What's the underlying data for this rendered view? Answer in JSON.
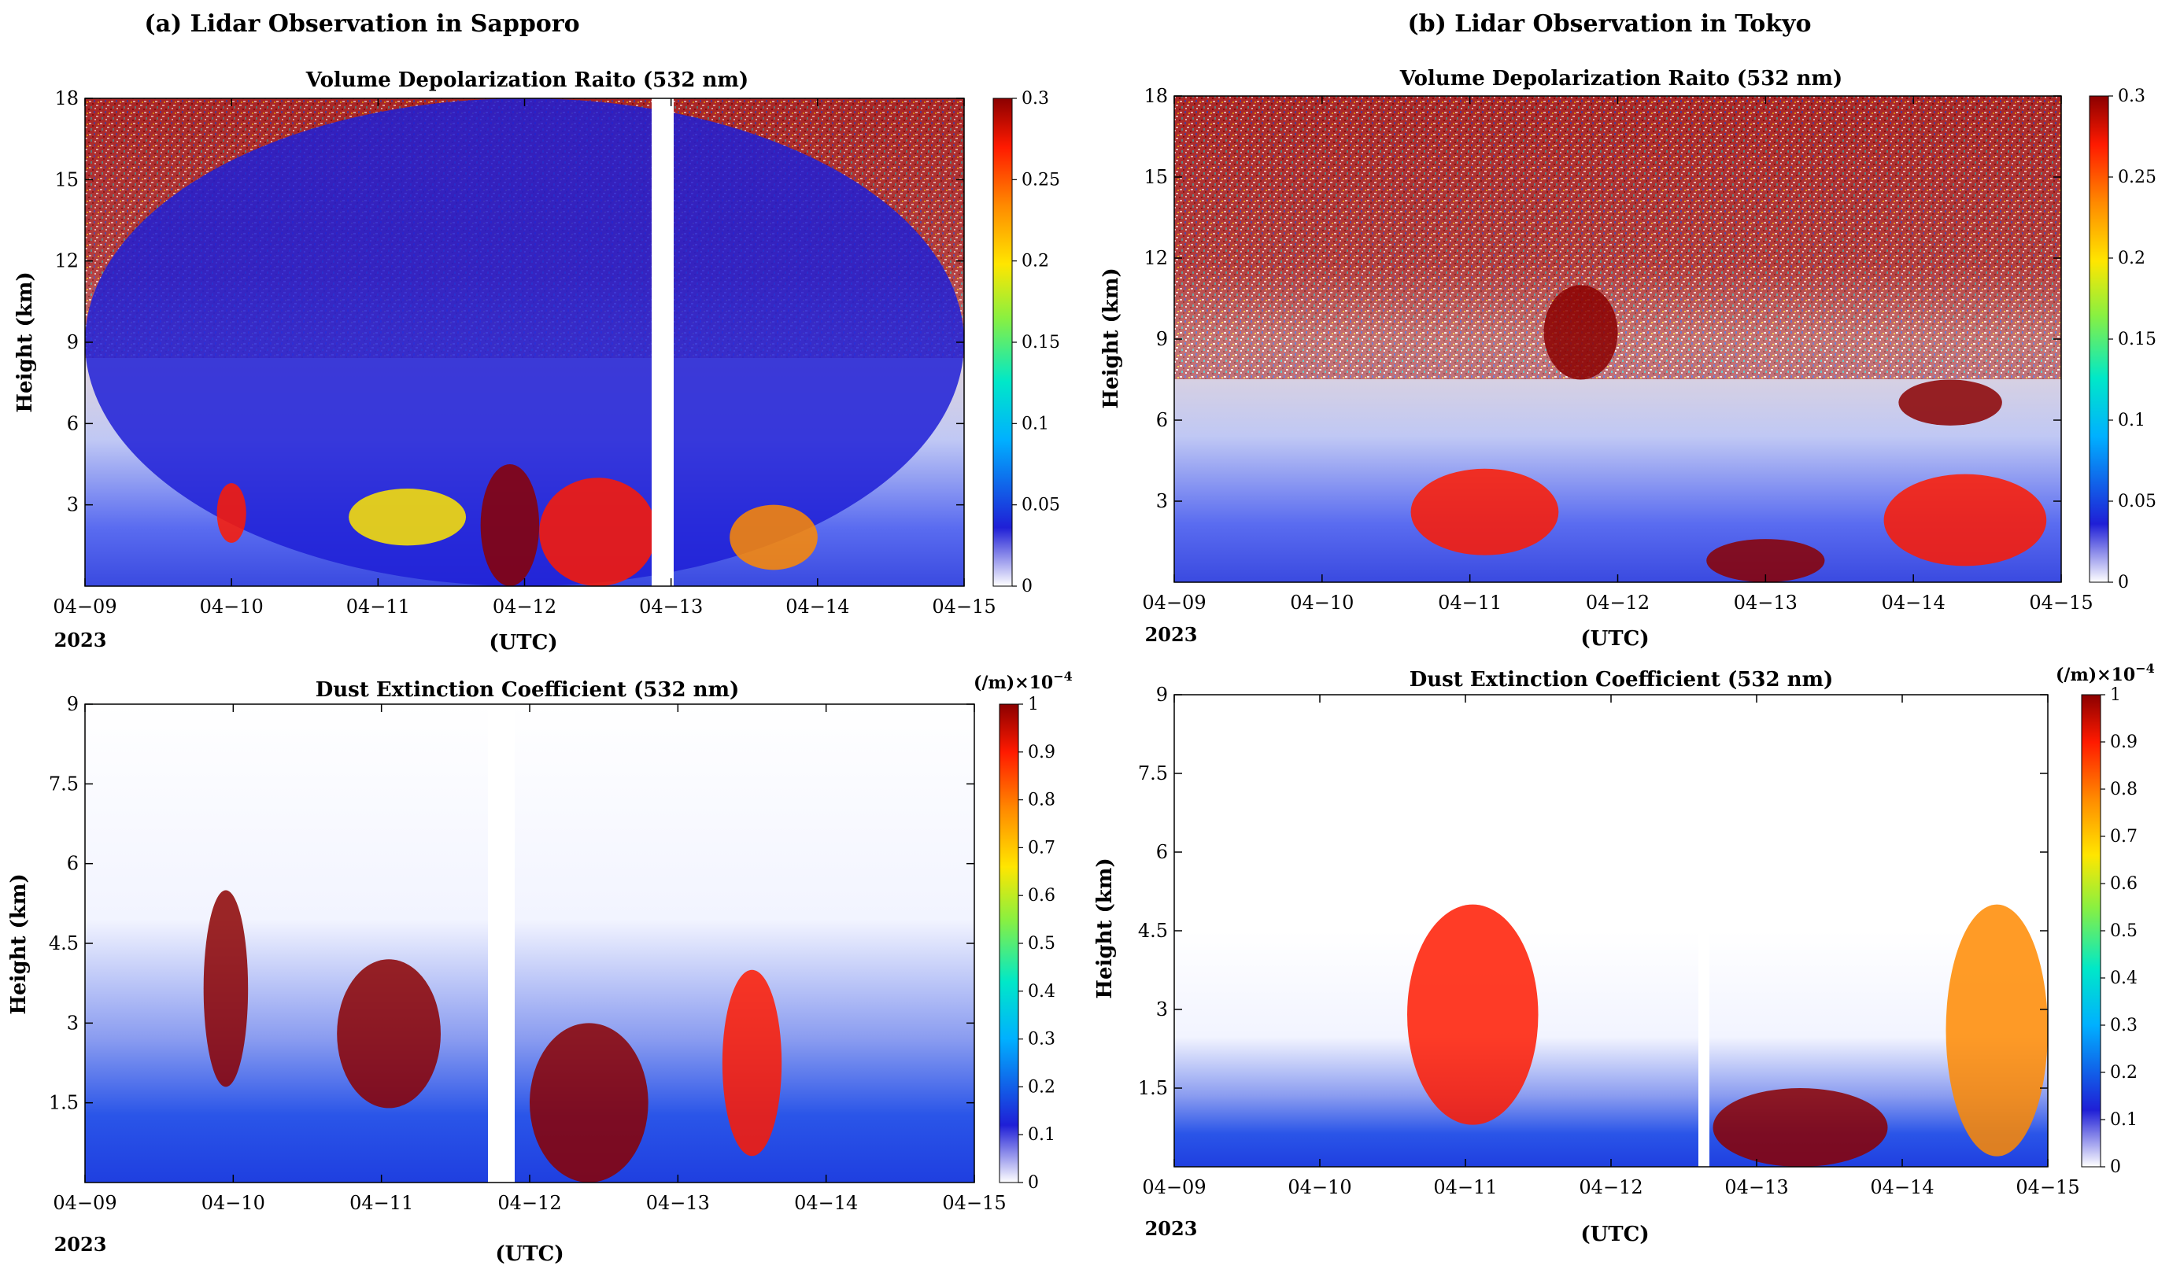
{
  "colors": {
    "colormap_jet": [
      "#ffffff",
      "#1f1fd6",
      "#00b0ff",
      "#00e8c8",
      "#8af040",
      "#ffe600",
      "#ff8a00",
      "#ff1a00",
      "#8b0000"
    ],
    "depol_noise": "#8b0000",
    "ext_blue": "#1f3fe0"
  },
  "panel_headings": {
    "a": "(a) Lidar Observation in Sapporo",
    "b": "(b) Lidar Observation in Tokyo"
  },
  "chart_data": [
    {
      "id": "a-depol",
      "type": "heatmap",
      "title": "Volume Depolarization Raito (532 nm)",
      "ylabel": "Height (km)",
      "xlabel": "(UTC)",
      "x_ticks": [
        "04−09",
        "04−10",
        "04−11",
        "04−12",
        "04−13",
        "04−14",
        "04−15"
      ],
      "x_year": "2023",
      "y_ticks": [
        3,
        6,
        9,
        12,
        15,
        18
      ],
      "ylim": [
        0,
        18
      ],
      "colorbar": {
        "label": "",
        "ticks": [
          0,
          0.05,
          0.1,
          0.15,
          0.2,
          0.25,
          0.3
        ],
        "range": [
          0,
          0.3
        ]
      },
      "features": [
        {
          "start_day": 0.0,
          "end_day": 6.0,
          "top_km": 18,
          "base_km": 0,
          "level": 0.02
        },
        {
          "start_day": 0.9,
          "end_day": 1.1,
          "top_km": 3.8,
          "base_km": 1.6,
          "level": 0.26
        },
        {
          "start_day": 1.8,
          "end_day": 2.6,
          "top_km": 3.6,
          "base_km": 1.5,
          "level": 0.2
        },
        {
          "start_day": 2.7,
          "end_day": 3.1,
          "top_km": 4.5,
          "base_km": 0,
          "level": 0.3
        },
        {
          "start_day": 3.1,
          "end_day": 3.9,
          "top_km": 4.0,
          "base_km": 0,
          "level": 0.27
        },
        {
          "start_day": 4.4,
          "end_day": 5.0,
          "top_km": 3.0,
          "base_km": 0.6,
          "level": 0.24
        }
      ]
    },
    {
      "id": "a-ext",
      "type": "heatmap",
      "title": "Dust Extinction Coefficient  (532 nm)",
      "ylabel": "Height (km)",
      "xlabel": "(UTC)",
      "x_ticks": [
        "04−09",
        "04−10",
        "04−11",
        "04−12",
        "04−13",
        "04−14",
        "04−15"
      ],
      "x_year": "2023",
      "y_ticks": [
        1.5,
        3,
        4.5,
        6,
        7.5,
        9
      ],
      "ylim": [
        0,
        9
      ],
      "colorbar": {
        "label": "(/m)×10",
        "label_exp": "−4",
        "ticks": [
          0,
          0.1,
          0.2,
          0.3,
          0.4,
          0.5,
          0.6,
          0.7,
          0.8,
          0.9,
          1
        ],
        "range": [
          0,
          1
        ]
      },
      "features": [
        {
          "start_day": 0.8,
          "end_day": 1.1,
          "top_km": 5.5,
          "base_km": 1.8,
          "level": 0.95
        },
        {
          "start_day": 1.7,
          "end_day": 2.4,
          "top_km": 4.2,
          "base_km": 1.4,
          "level": 0.95
        },
        {
          "start_day": 3.0,
          "end_day": 3.8,
          "top_km": 3.0,
          "base_km": 0,
          "level": 1.0
        },
        {
          "start_day": 4.3,
          "end_day": 4.7,
          "top_km": 4.0,
          "base_km": 0.5,
          "level": 0.9
        }
      ]
    },
    {
      "id": "b-depol",
      "type": "heatmap",
      "title": "Volume Depolarization Raito (532 nm)",
      "ylabel": "Height (km)",
      "xlabel": "(UTC)",
      "x_ticks": [
        "04−09",
        "04−10",
        "04−11",
        "04−12",
        "04−13",
        "04−14",
        "04−15"
      ],
      "x_year": "2023",
      "y_ticks": [
        3,
        6,
        9,
        12,
        15,
        18
      ],
      "ylim": [
        0,
        18
      ],
      "colorbar": {
        "label": "",
        "ticks": [
          0,
          0.05,
          0.1,
          0.15,
          0.2,
          0.25,
          0.3
        ],
        "range": [
          0,
          0.3
        ]
      },
      "features": [
        {
          "start_day": 1.6,
          "end_day": 2.6,
          "top_km": 4.2,
          "base_km": 1.0,
          "level": 0.27
        },
        {
          "start_day": 2.5,
          "end_day": 3.0,
          "top_km": 11,
          "base_km": 7.5,
          "level": 0.3
        },
        {
          "start_day": 3.6,
          "end_day": 4.4,
          "top_km": 1.6,
          "base_km": 0,
          "level": 0.3
        },
        {
          "start_day": 4.8,
          "end_day": 5.9,
          "top_km": 4.0,
          "base_km": 0.6,
          "level": 0.25
        },
        {
          "start_day": 4.9,
          "end_day": 5.6,
          "top_km": 7.5,
          "base_km": 5.8,
          "level": 0.3
        }
      ]
    },
    {
      "id": "b-ext",
      "type": "heatmap",
      "title": "Dust Extinction Coefficient  (532 nm)",
      "ylabel": "Height (km)",
      "xlabel": "(UTC)",
      "x_ticks": [
        "04−09",
        "04−10",
        "04−11",
        "04−12",
        "04−13",
        "04−14",
        "04−15"
      ],
      "x_year": "2023",
      "y_ticks": [
        1.5,
        3,
        4.5,
        6,
        7.5,
        9
      ],
      "ylim": [
        0,
        9
      ],
      "colorbar": {
        "label": "(/m)×10",
        "label_exp": "−4",
        "ticks": [
          0,
          0.1,
          0.2,
          0.3,
          0.4,
          0.5,
          0.6,
          0.7,
          0.8,
          0.9,
          1
        ],
        "range": [
          0,
          1
        ]
      },
      "features": [
        {
          "start_day": 1.6,
          "end_day": 2.5,
          "top_km": 5.0,
          "base_km": 0.8,
          "level": 0.9
        },
        {
          "start_day": 3.7,
          "end_day": 4.9,
          "top_km": 1.5,
          "base_km": 0,
          "level": 0.95
        },
        {
          "start_day": 5.3,
          "end_day": 6.0,
          "top_km": 5.0,
          "base_km": 0.2,
          "level": 0.75
        }
      ]
    }
  ]
}
